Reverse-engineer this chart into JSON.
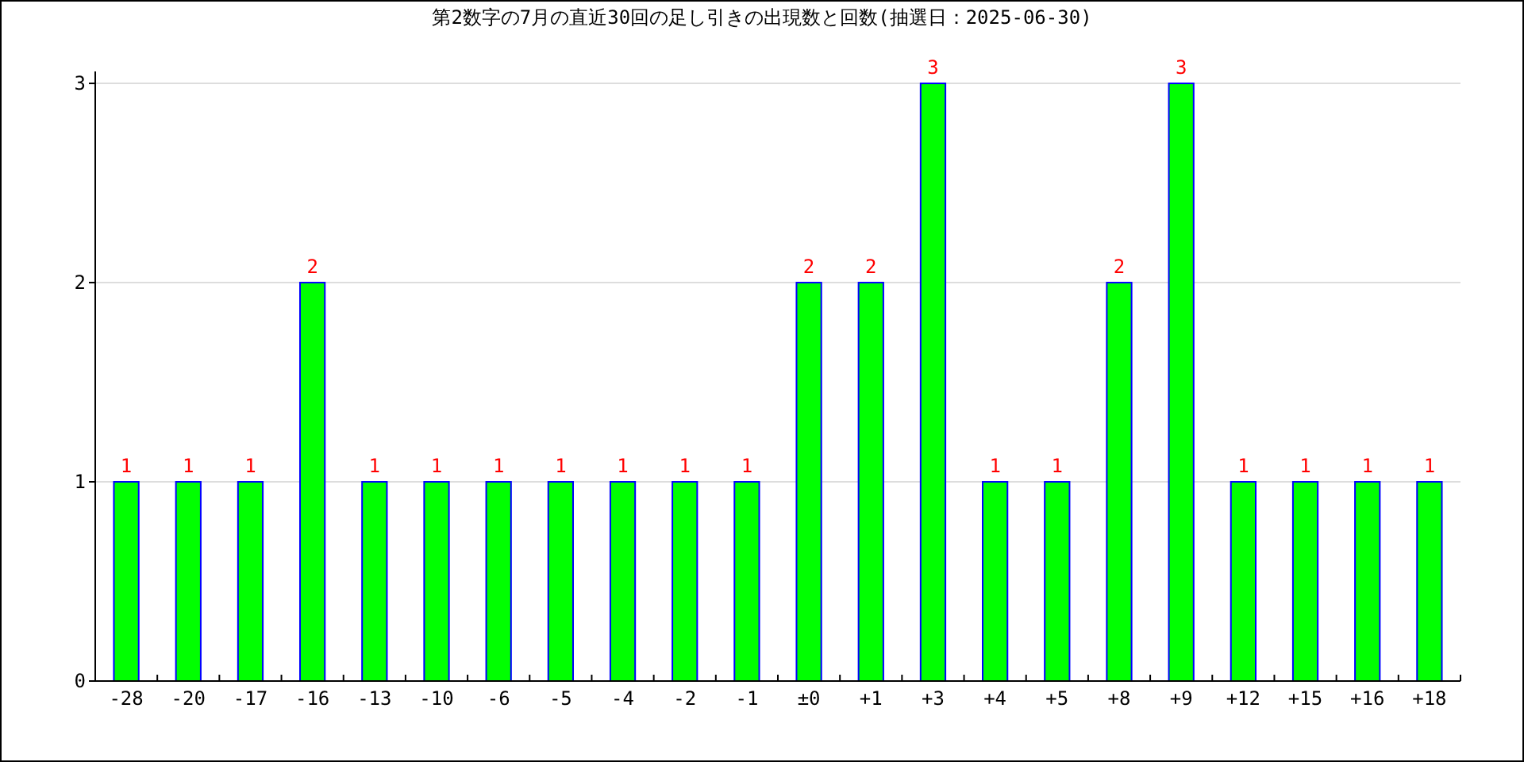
{
  "chart_data": {
    "type": "bar",
    "title": "第2数字の7月の直近30回の足し引きの出現数と回数(抽選日：2025-06-30)",
    "categories": [
      "-28",
      "-20",
      "-17",
      "-16",
      "-13",
      "-10",
      "-6",
      "-5",
      "-4",
      "-2",
      "-1",
      "±0",
      "+1",
      "+3",
      "+4",
      "+5",
      "+8",
      "+9",
      "+12",
      "+15",
      "+16",
      "+18"
    ],
    "values": [
      1,
      1,
      1,
      2,
      1,
      1,
      1,
      1,
      1,
      1,
      1,
      2,
      2,
      3,
      1,
      1,
      2,
      3,
      1,
      1,
      1,
      1
    ],
    "color": "#00ff00",
    "ylim": [
      0,
      3.06
    ],
    "yticks": [
      0,
      1,
      2,
      3
    ],
    "grid": "y",
    "data_labels": true,
    "legend": false
  }
}
